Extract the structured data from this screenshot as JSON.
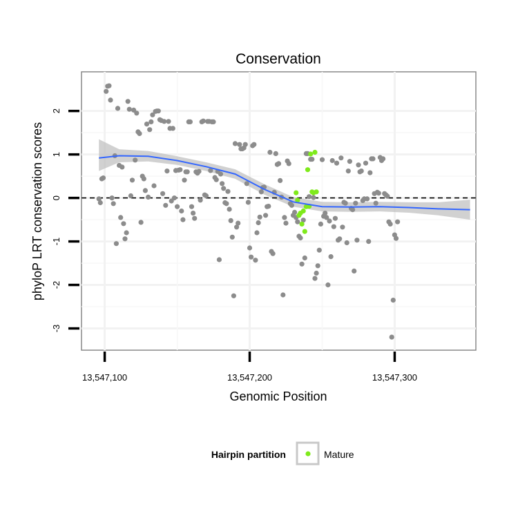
{
  "chart_data": {
    "type": "scatter",
    "title": "Conservation",
    "xlabel": "Genomic Position",
    "ylabel": "phyloP LRT conservation scores",
    "xlim": [
      13547084,
      13547356
    ],
    "ylim": [
      -3.5,
      2.9
    ],
    "x_ticks": [
      13547100,
      13547200,
      13547300
    ],
    "x_tick_labels": [
      "13,547,100",
      "13,547,200",
      "13,547,300"
    ],
    "y_ticks": [
      2,
      1,
      0,
      -1,
      -2,
      -3
    ],
    "y_tick_labels": [
      "2",
      "1",
      "0",
      "-1",
      "-2",
      "-3"
    ],
    "reference_line": {
      "y": 0,
      "style": "dashed",
      "color": "#000000"
    },
    "grid": true,
    "legend": {
      "title": "Hairpin partition",
      "position": "bottom",
      "entries": [
        {
          "label": "Mature",
          "color": "#7FEA1B"
        }
      ]
    },
    "colors": {
      "points": "#8C8C8C",
      "mature": "#7FEA1B",
      "smooth": "#3366FF",
      "ribbon": "#BEBEBE"
    },
    "series": [
      {
        "name": "",
        "color": "#8C8C8C",
        "points": [
          [
            13547096,
            -0.02
          ],
          [
            13547097,
            -0.11
          ],
          [
            13547098,
            0.44
          ],
          [
            13547099,
            0.46
          ],
          [
            13547101,
            2.45
          ],
          [
            13547102,
            2.57
          ],
          [
            13547103,
            2.58
          ],
          [
            13547104,
            2.25
          ],
          [
            13547105,
            0.0
          ],
          [
            13547106,
            -0.13
          ],
          [
            13547107,
            0.97
          ],
          [
            13547108,
            -1.05
          ],
          [
            13547109,
            2.06
          ],
          [
            13547110,
            0.75
          ],
          [
            13547111,
            -0.45
          ],
          [
            13547112,
            0.71
          ],
          [
            13547113,
            -0.59
          ],
          [
            13547114,
            -0.94
          ],
          [
            13547115,
            -0.8
          ],
          [
            13547116,
            2.22
          ],
          [
            13547117,
            2.04
          ],
          [
            13547118,
            0.05
          ],
          [
            13547119,
            0.41
          ],
          [
            13547120,
            2.02
          ],
          [
            13547121,
            0.87
          ],
          [
            13547122,
            1.95
          ],
          [
            13547123,
            1.52
          ],
          [
            13547124,
            1.48
          ],
          [
            13547125,
            -0.56
          ],
          [
            13547126,
            0.5
          ],
          [
            13547127,
            0.44
          ],
          [
            13547128,
            0.17
          ],
          [
            13547129,
            1.7
          ],
          [
            13547130,
            0.02
          ],
          [
            13547131,
            1.57
          ],
          [
            13547132,
            1.75
          ],
          [
            13547133,
            1.91
          ],
          [
            13547134,
            0.28
          ],
          [
            13547135,
            1.99
          ],
          [
            13547136,
            2.0
          ],
          [
            13547137,
            2.0
          ],
          [
            13547138,
            1.8
          ],
          [
            13547139,
            1.78
          ],
          [
            13547140,
            0.1
          ],
          [
            13547141,
            1.76
          ],
          [
            13547142,
            -0.17
          ],
          [
            13547143,
            0.62
          ],
          [
            13547144,
            1.76
          ],
          [
            13547145,
            1.6
          ],
          [
            13547146,
            -0.07
          ],
          [
            13547147,
            1.6
          ],
          [
            13547148,
            0.0
          ],
          [
            13547149,
            0.63
          ],
          [
            13547150,
            -0.2
          ],
          [
            13547151,
            0.64
          ],
          [
            13547152,
            0.65
          ],
          [
            13547153,
            -0.3
          ],
          [
            13547154,
            -0.5
          ],
          [
            13547155,
            0.41
          ],
          [
            13547156,
            0.6
          ],
          [
            13547157,
            0.6
          ],
          [
            13547158,
            1.75
          ],
          [
            13547159,
            1.75
          ],
          [
            13547160,
            -0.2
          ],
          [
            13547161,
            -0.35
          ],
          [
            13547162,
            -0.47
          ],
          [
            13547163,
            0.6
          ],
          [
            13547164,
            0.57
          ],
          [
            13547165,
            0.61
          ],
          [
            13547166,
            -0.05
          ],
          [
            13547167,
            1.75
          ],
          [
            13547168,
            1.77
          ],
          [
            13547169,
            0.07
          ],
          [
            13547170,
            0.05
          ],
          [
            13547171,
            1.76
          ],
          [
            13547172,
            1.76
          ],
          [
            13547173,
            0.63
          ],
          [
            13547174,
            1.75
          ],
          [
            13547175,
            1.75
          ],
          [
            13547176,
            0.47
          ],
          [
            13547177,
            0.42
          ],
          [
            13547178,
            0.61
          ],
          [
            13547179,
            -1.42
          ],
          [
            13547180,
            0.55
          ],
          [
            13547181,
            0.33
          ],
          [
            13547182,
            0.22
          ],
          [
            13547183,
            -0.11
          ],
          [
            13547184,
            -0.13
          ],
          [
            13547185,
            0.15
          ],
          [
            13547186,
            -0.26
          ],
          [
            13547187,
            -0.52
          ],
          [
            13547188,
            -0.9
          ],
          [
            13547189,
            -2.25
          ],
          [
            13547190,
            1.25
          ],
          [
            13547191,
            -0.67
          ],
          [
            13547192,
            -0.58
          ],
          [
            13547193,
            1.23
          ],
          [
            13547194,
            1.13
          ],
          [
            13547195,
            1.13
          ],
          [
            13547196,
            1.15
          ],
          [
            13547197,
            1.23
          ],
          [
            13547198,
            0.33
          ],
          [
            13547199,
            -0.1
          ],
          [
            13547200,
            -1.15
          ],
          [
            13547201,
            -1.36
          ],
          [
            13547202,
            1.2
          ],
          [
            13547203,
            1.23
          ],
          [
            13547204,
            -1.43
          ],
          [
            13547205,
            -0.8
          ],
          [
            13547206,
            -0.57
          ],
          [
            13547207,
            -0.44
          ],
          [
            13547208,
            0.14
          ],
          [
            13547209,
            0.24
          ],
          [
            13547210,
            0.25
          ],
          [
            13547211,
            -0.4
          ],
          [
            13547212,
            -0.2
          ],
          [
            13547213,
            -0.19
          ],
          [
            13547214,
            1.05
          ],
          [
            13547215,
            -1.23
          ],
          [
            13547216,
            -1.28
          ],
          [
            13547217,
            0.13
          ],
          [
            13547218,
            1.02
          ],
          [
            13547219,
            0.77
          ],
          [
            13547220,
            0.79
          ],
          [
            13547221,
            0.4
          ],
          [
            13547222,
            0.02
          ],
          [
            13547223,
            -2.23
          ],
          [
            13547224,
            -0.45
          ],
          [
            13547225,
            -0.58
          ],
          [
            13547226,
            0.85
          ],
          [
            13547227,
            0.79
          ],
          [
            13547228,
            -0.13
          ],
          [
            13547229,
            -0.17
          ],
          [
            13547230,
            -0.4
          ],
          [
            13547231,
            -0.33
          ],
          [
            13547232,
            -0.45
          ],
          [
            13547233,
            -0.55
          ],
          [
            13547234,
            -0.88
          ],
          [
            13547235,
            -0.92
          ],
          [
            13547236,
            -1.52
          ],
          [
            13547237,
            -0.51
          ],
          [
            13547238,
            -1.38
          ],
          [
            13547239,
            1.02
          ],
          [
            13547240,
            1.02
          ],
          [
            13547241,
            0.03
          ],
          [
            13547242,
            0.89
          ],
          [
            13547243,
            0.89
          ],
          [
            13547244,
            0.01
          ],
          [
            13547245,
            -1.85
          ],
          [
            13547246,
            -1.73
          ],
          [
            13547247,
            -1.56
          ],
          [
            13547248,
            -1.2
          ],
          [
            13547249,
            -0.6
          ],
          [
            13547250,
            0.88
          ],
          [
            13547251,
            -0.42
          ],
          [
            13547252,
            -0.35
          ],
          [
            13547253,
            -0.45
          ],
          [
            13547254,
            -2.0
          ],
          [
            13547255,
            -0.53
          ],
          [
            13547256,
            -1.35
          ],
          [
            13547257,
            0.86
          ],
          [
            13547258,
            -0.66
          ],
          [
            13547259,
            -0.47
          ],
          [
            13547260,
            0.8
          ],
          [
            13547261,
            -0.97
          ],
          [
            13547262,
            -0.94
          ],
          [
            13547263,
            0.92
          ],
          [
            13547264,
            -0.67
          ],
          [
            13547265,
            -0.1
          ],
          [
            13547266,
            -0.12
          ],
          [
            13547267,
            -1.03
          ],
          [
            13547268,
            0.62
          ],
          [
            13547269,
            0.84
          ],
          [
            13547270,
            -0.24
          ],
          [
            13547271,
            -0.27
          ],
          [
            13547272,
            -1.68
          ],
          [
            13547273,
            -0.12
          ],
          [
            13547274,
            -0.97
          ],
          [
            13547275,
            0.76
          ],
          [
            13547276,
            0.6
          ],
          [
            13547277,
            0.62
          ],
          [
            13547278,
            -0.06
          ],
          [
            13547279,
            -0.02
          ],
          [
            13547280,
            0.8
          ],
          [
            13547281,
            -0.02
          ],
          [
            13547282,
            -1.0
          ],
          [
            13547283,
            0.58
          ],
          [
            13547284,
            0.9
          ],
          [
            13547285,
            0.9
          ],
          [
            13547286,
            0.1
          ],
          [
            13547287,
            -0.12
          ],
          [
            13547288,
            0.13
          ],
          [
            13547289,
            0.11
          ],
          [
            13547290,
            0.93
          ],
          [
            13547291,
            0.86
          ],
          [
            13547292,
            0.9
          ],
          [
            13547293,
            0.1
          ],
          [
            13547294,
            0.07
          ],
          [
            13547295,
            0.04
          ],
          [
            13547296,
            -0.55
          ],
          [
            13547297,
            -0.6
          ],
          [
            13547298,
            -3.2
          ],
          [
            13547299,
            -2.35
          ],
          [
            13547300,
            -0.85
          ],
          [
            13547301,
            -0.93
          ],
          [
            13547302,
            -0.55
          ]
        ]
      },
      {
        "name": "Mature",
        "color": "#7FEA1B",
        "points": [
          [
            13547232,
            0.12
          ],
          [
            13547233,
            -0.05
          ],
          [
            13547234,
            -0.4
          ],
          [
            13547235,
            -0.35
          ],
          [
            13547236,
            -0.6
          ],
          [
            13547237,
            -0.3
          ],
          [
            13547238,
            -0.77
          ],
          [
            13547239,
            -0.2
          ],
          [
            13547240,
            0.65
          ],
          [
            13547241,
            -0.19
          ],
          [
            13547242,
            1.01
          ],
          [
            13547243,
            0.14
          ],
          [
            13547244,
            0.12
          ],
          [
            13547245,
            1.05
          ],
          [
            13547246,
            0.14
          ]
        ]
      }
    ],
    "smooth": {
      "x": [
        13547096,
        13547110,
        13547130,
        13547150,
        13547170,
        13547190,
        13547210,
        13547230,
        13547250,
        13547270,
        13547290,
        13547310,
        13547330,
        13547352
      ],
      "y": [
        0.92,
        0.97,
        0.96,
        0.86,
        0.72,
        0.55,
        0.2,
        -0.09,
        -0.2,
        -0.21,
        -0.2,
        -0.22,
        -0.25,
        -0.27
      ],
      "lower": [
        0.62,
        0.82,
        0.84,
        0.76,
        0.62,
        0.44,
        0.08,
        -0.2,
        -0.31,
        -0.32,
        -0.31,
        -0.34,
        -0.4,
        -0.5
      ],
      "upper": [
        1.35,
        1.12,
        1.08,
        0.96,
        0.82,
        0.66,
        0.32,
        0.02,
        -0.09,
        -0.1,
        -0.09,
        -0.1,
        -0.1,
        -0.04
      ]
    }
  }
}
